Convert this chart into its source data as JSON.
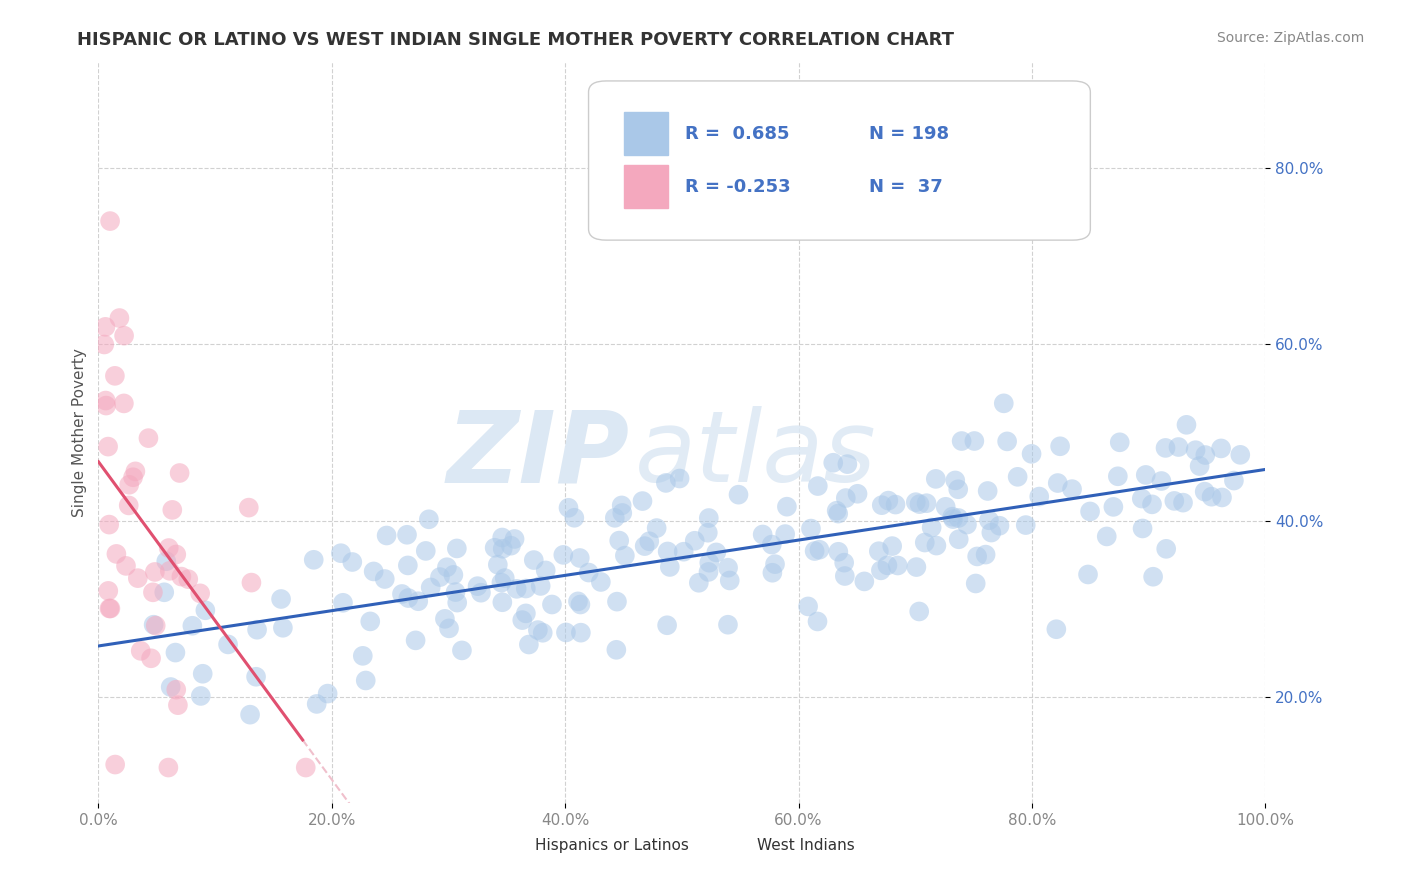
{
  "title": "HISPANIC OR LATINO VS WEST INDIAN SINGLE MOTHER POVERTY CORRELATION CHART",
  "source": "Source: ZipAtlas.com",
  "ylabel": "Single Mother Poverty",
  "xlim": [
    0.0,
    1.0
  ],
  "ylim": [
    0.08,
    0.92
  ],
  "yticks": [
    0.2,
    0.4,
    0.6,
    0.8
  ],
  "xticks": [
    0.0,
    0.2,
    0.4,
    0.6,
    0.8,
    1.0
  ],
  "blue_R": 0.685,
  "blue_N": 198,
  "pink_R": -0.253,
  "pink_N": 37,
  "title_fontsize": 13,
  "axis_label_fontsize": 11,
  "tick_fontsize": 11,
  "legend_fontsize": 13,
  "source_fontsize": 10,
  "background_color": "#ffffff",
  "grid_color": "#cccccc",
  "title_color": "#333333",
  "ylabel_color": "#555555",
  "tick_color": "#4472c4",
  "xtick_color": "#888888",
  "blue_scatter_color": "#aac8e8",
  "pink_scatter_color": "#f4a8be",
  "blue_line_color": "#3060b8",
  "pink_line_color": "#e05070",
  "pink_dash_color": "#f0c0cc",
  "watermark_color": "#dce8f4",
  "legend_box_color": "#ffffff",
  "legend_border_color": "#cccccc",
  "legend_text_color": "#4472c4",
  "bottom_legend_labels": [
    "Hispanics or Latinos",
    "West Indians"
  ]
}
